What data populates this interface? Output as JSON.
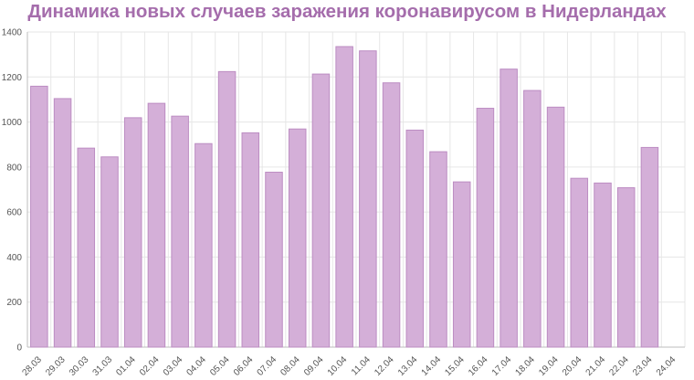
{
  "chart_data": {
    "type": "bar",
    "title": "Динамика новых случаев заражения коронавирусом в Нидерландах",
    "categories": [
      "28.03",
      "29.03",
      "30.03",
      "31.03",
      "01.04",
      "02.04",
      "03.04",
      "04.04",
      "05.04",
      "06.04",
      "07.04",
      "08.04",
      "09.04",
      "10.04",
      "11.04",
      "12.04",
      "13.04",
      "14.04",
      "15.04",
      "16.04",
      "17.04",
      "18.04",
      "19.04",
      "20.04",
      "21.04",
      "22.04",
      "23.04",
      "24.04"
    ],
    "values": [
      1159,
      1104,
      884,
      845,
      1019,
      1083,
      1026,
      904,
      1224,
      952,
      777,
      969,
      1213,
      1335,
      1316,
      1174,
      964,
      868,
      734,
      1061,
      1235,
      1140,
      1066,
      750,
      729,
      708,
      887,
      null
    ],
    "ylim": [
      0,
      1400
    ],
    "yticks": [
      0,
      200,
      400,
      600,
      800,
      1000,
      1200,
      1400
    ],
    "grid": true,
    "legend": "none",
    "colors": {
      "bar_fill": "#d4afd8",
      "bar_stroke": "#bc8cc2",
      "title": "#a56dac"
    }
  }
}
